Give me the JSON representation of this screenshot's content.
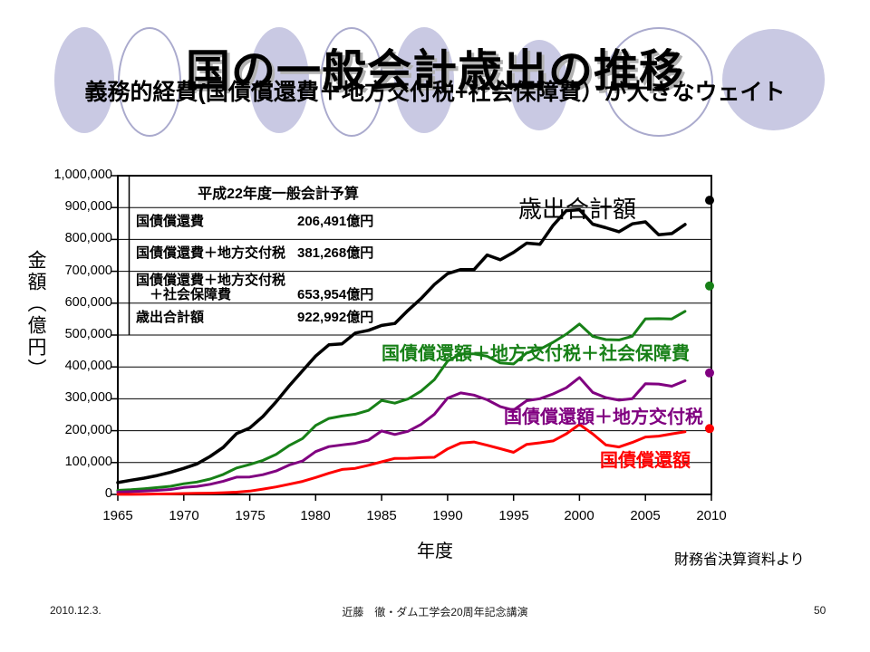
{
  "slide": {
    "title": "国の一般会計歳出の推移",
    "subtitle": "義務的経費(国債償還費＋地方交付税+社会保障費）が大きなウェイト",
    "source_note": "財務省決算資料より",
    "accent_fill_color": "#c9c9e3",
    "accent_border_color": "#aaaacd",
    "footer": {
      "date": "2010.12.3.",
      "credit": "近藤　徹・ダム工学会20周年記念講演",
      "page_number": "50"
    }
  },
  "budget_table": {
    "title": "平成22年度一般会計予算",
    "rows": [
      {
        "label": "国債償還費",
        "value": "206,491億円"
      },
      {
        "label": "国債償還費＋地方交付税",
        "value": "381,268億円"
      },
      {
        "label": "国債償還費＋地方交付税",
        "label_line2": "　＋社会保障費",
        "value": "653,954億円"
      },
      {
        "label": "歳出合計額",
        "value": "922,992億円"
      }
    ]
  },
  "chart_data": {
    "type": "line",
    "xlabel": "年度",
    "ylabel": "金額（億円）",
    "xlim": [
      1965,
      2010
    ],
    "ylim": [
      0,
      1000000
    ],
    "grid": true,
    "x_ticks": [
      1965,
      1970,
      1975,
      1980,
      1985,
      1990,
      1995,
      2000,
      2005,
      2010
    ],
    "x_tick_labels": [
      "1965",
      "1970",
      "1975",
      "1980",
      "1985",
      "1990",
      "1995",
      "2000",
      "2005",
      "2010"
    ],
    "y_ticks": [
      1000000,
      900000,
      800000,
      700000,
      600000,
      500000,
      400000,
      300000,
      200000,
      100000,
      0
    ],
    "y_tick_labels": [
      "1,000,000",
      "900,000",
      "800,000",
      "700,000",
      "600,000",
      "500,000",
      "400,000",
      "300,000",
      "200,000",
      "100,000",
      "0"
    ],
    "x": [
      1965,
      1966,
      1967,
      1968,
      1969,
      1970,
      1971,
      1972,
      1973,
      1974,
      1975,
      1976,
      1977,
      1978,
      1979,
      1980,
      1981,
      1982,
      1983,
      1984,
      1985,
      1986,
      1987,
      1988,
      1989,
      1990,
      1991,
      1992,
      1993,
      1994,
      1995,
      1996,
      1997,
      1998,
      1999,
      2000,
      2001,
      2002,
      2003,
      2004,
      2005,
      2006,
      2007,
      2008
    ],
    "series": [
      {
        "name": "歳出合計額",
        "color": "#000000",
        "values": [
          37230,
          44592,
          51130,
          59371,
          69178,
          81877,
          95611,
          119322,
          147783,
          190998,
          208609,
          244676,
          290598,
          340960,
          387898,
          434050,
          469211,
          472451,
          506353,
          514806,
          530045,
          536404,
          577311,
          614711,
          658589,
          692687,
          705472,
          704974,
          751025,
          736136,
          759385,
          788479,
          784703,
          843918,
          890374,
          893211,
          848111,
          836743,
          824160,
          848968,
          855196,
          814455,
          818426,
          846974
        ]
      },
      {
        "name": "国債償還額＋地方交付税＋社会保障費",
        "color": "#178017",
        "values": [
          12700,
          14900,
          17900,
          21500,
          25700,
          33400,
          39000,
          48300,
          62700,
          83000,
          94000,
          106700,
          125500,
          153800,
          175400,
          216500,
          238400,
          245900,
          251700,
          263600,
          294800,
          286300,
          299500,
          324300,
          360200,
          418400,
          440900,
          440800,
          433600,
          412600,
          409400,
          444100,
          455400,
          477200,
          502700,
          534600,
          496100,
          485800,
          484600,
          496200,
          550900,
          551300,
          550500,
          574400
        ]
      },
      {
        "name": "国債償還額＋地方交付税",
        "color": "#800080",
        "values": [
          7500,
          8700,
          10600,
          12900,
          15600,
          22000,
          25400,
          31700,
          41500,
          54200,
          54700,
          62000,
          73500,
          92200,
          104800,
          134400,
          150000,
          155300,
          160100,
          170500,
          199100,
          188000,
          198000,
          219800,
          251300,
          302200,
          318500,
          311600,
          297000,
          275400,
          264400,
          294100,
          300400,
          315200,
          334700,
          366900,
          320100,
          303800,
          295600,
          300200,
          347100,
          346300,
          339500,
          356600
        ]
      },
      {
        "name": "国債償還額",
        "color": "#ff0000",
        "values": [
          220,
          250,
          940,
          1460,
          1760,
          2909,
          3400,
          4100,
          5400,
          7200,
          10400,
          16700,
          23500,
          32200,
          40800,
          53100,
          66500,
          78300,
          81900,
          91600,
          102200,
          113200,
          113300,
          115300,
          116600,
          142900,
          161100,
          164500,
          154400,
          143600,
          132200,
          157000,
          162000,
          168000,
          190000,
          219700,
          190000,
          155000,
          149000,
          163000,
          180000,
          183000,
          190000,
          196600
        ]
      }
    ],
    "budget_points_2010": [
      {
        "series": "歳出合計額",
        "x": 2010,
        "value": 922992,
        "color": "#000000"
      },
      {
        "series": "国債償還額＋地方交付税＋社会保障費",
        "x": 2010,
        "value": 653954,
        "color": "#178017"
      },
      {
        "series": "国債償還額＋地方交付税",
        "x": 2010,
        "value": 381268,
        "color": "#800080"
      },
      {
        "series": "国債償還額",
        "x": 2010,
        "value": 206491,
        "color": "#ff0000"
      }
    ]
  }
}
